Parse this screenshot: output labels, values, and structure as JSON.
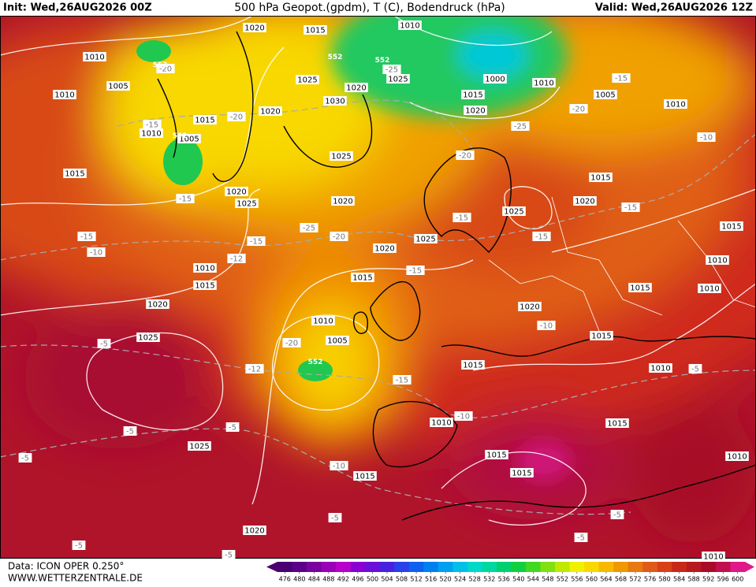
{
  "header": {
    "init": "Init: Wed,26AUG2026 00Z",
    "title": "500 hPa Geopot.(gpdm), T (C), Bodendruck (hPa)",
    "valid": "Valid: Wed,26AUG2026 12Z"
  },
  "footer": {
    "source": "Data: ICON OPER 0.250°",
    "site": "WWW.WETTERZENTRALE.DE"
  },
  "colorbar": {
    "ticks": [
      476,
      480,
      484,
      488,
      492,
      496,
      500,
      504,
      508,
      512,
      516,
      520,
      524,
      528,
      532,
      536,
      540,
      544,
      548,
      552,
      556,
      560,
      564,
      568,
      572,
      576,
      580,
      584,
      588,
      592,
      596,
      600
    ],
    "colors": [
      "#4a0070",
      "#5c0088",
      "#7a00a0",
      "#9900b8",
      "#b800cc",
      "#8a00d0",
      "#6a10d8",
      "#4a20e0",
      "#2a40e8",
      "#1060f0",
      "#0080f0",
      "#00a0f0",
      "#00c0e8",
      "#00d8c8",
      "#00d8a0",
      "#00d070",
      "#10d040",
      "#40d820",
      "#80e010",
      "#c0e800",
      "#f0f000",
      "#f8d800",
      "#f8b800",
      "#f09800",
      "#e87810",
      "#e05a18",
      "#d84018",
      "#c82818",
      "#b81820",
      "#a80c28",
      "#c01050",
      "#e01888"
    ]
  },
  "map": {
    "isobar_labels": [
      "1020",
      "1015",
      "1010",
      "1010",
      "1005",
      "1010",
      "1025",
      "1020",
      "1030",
      "1025",
      "1000",
      "1010",
      "1015",
      "1020",
      "1005",
      "1010",
      "1020",
      "1015",
      "1010",
      "1005",
      "1025",
      "1015",
      "1015",
      "1020",
      "1025",
      "1020",
      "1020",
      "1025",
      "1025",
      "1020",
      "1015",
      "1010",
      "1010",
      "1015",
      "1015",
      "1015",
      "1010",
      "1020",
      "1020",
      "1010",
      "1005",
      "1025",
      "1015",
      "1015",
      "1010",
      "1010",
      "1015",
      "1025",
      "1015",
      "1015",
      "1015",
      "1010",
      "1020",
      "1010"
    ],
    "temperature_labels": [
      "-20",
      "-15",
      "-20",
      "-15",
      "-25",
      "-20",
      "-15",
      "-10",
      "-15",
      "-12",
      "-15",
      "-15",
      "-15",
      "-15",
      "-20",
      "-10",
      "-15",
      "-5",
      "-20",
      "-12",
      "-15",
      "-10",
      "-10",
      "-5",
      "-5",
      "-5",
      "-5",
      "-10",
      "-5",
      "-5",
      "-5",
      "-5",
      "-5",
      "-20",
      "-25",
      "-25"
    ],
    "geopotential_labels": [
      "552",
      "552",
      "552",
      "552",
      "552"
    ]
  }
}
